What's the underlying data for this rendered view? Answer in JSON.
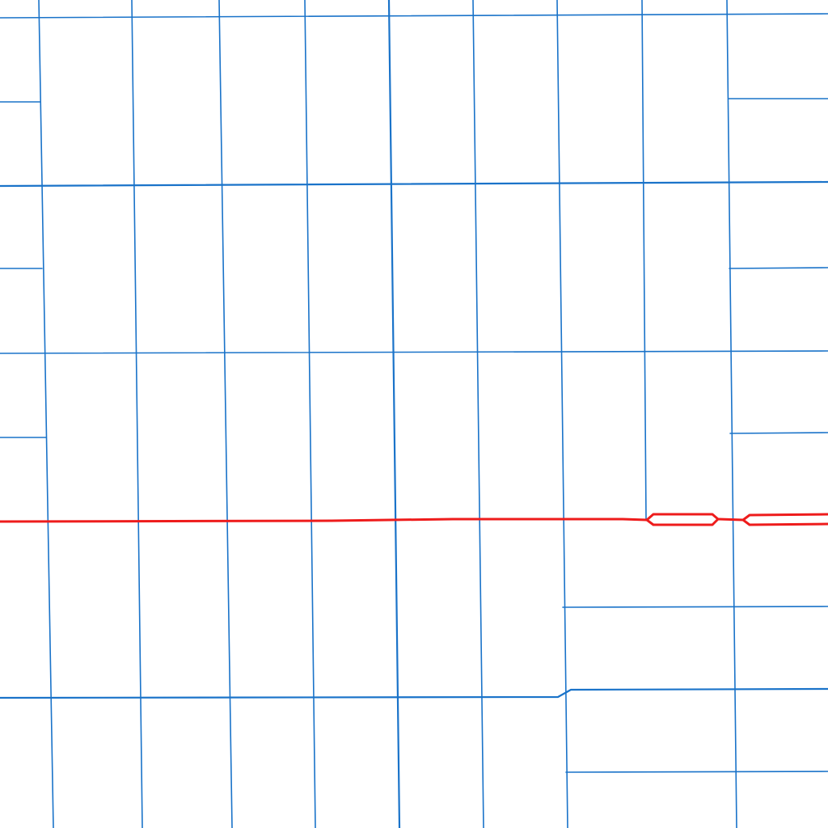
{
  "map": {
    "colors": {
      "background": "#ffffff",
      "street": "#1a73c9",
      "highway": "#ee1c1c"
    }
  }
}
